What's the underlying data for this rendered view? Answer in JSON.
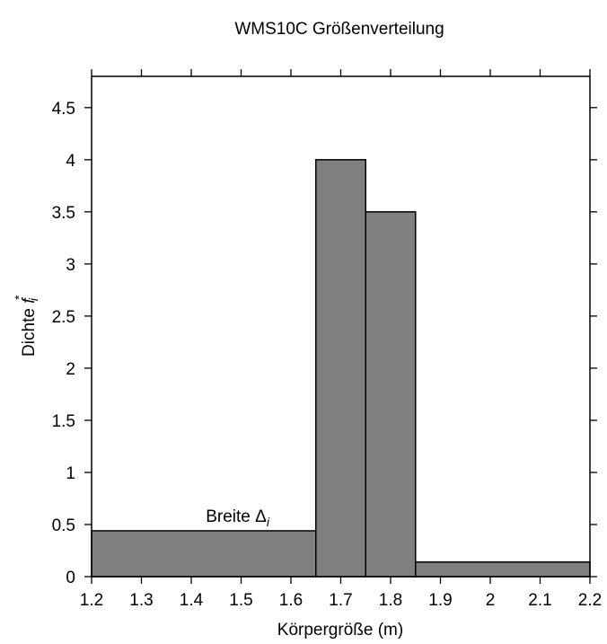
{
  "chart_data": {
    "type": "bar",
    "title": "WMS10C Größenverteilung",
    "xlabel": "Körpergröße (m)",
    "ylabel_text": "Dichte ",
    "ylabel_symbol": "f",
    "ylabel_sub": "i",
    "ylabel_sup": "*",
    "xlim": [
      1.2,
      2.2
    ],
    "ylim": [
      0,
      4.8
    ],
    "xticks": [
      "1.2",
      "1.3",
      "1.4",
      "1.5",
      "1.6",
      "1.7",
      "1.8",
      "1.9",
      "2",
      "2.1",
      "2.2"
    ],
    "yticks": [
      "0",
      "0.5",
      "1",
      "1.5",
      "2",
      "2.5",
      "3",
      "3.5",
      "4",
      "4.5"
    ],
    "bins": [
      {
        "x0": 1.2,
        "x1": 1.65,
        "value": 0.44
      },
      {
        "x0": 1.65,
        "x1": 1.75,
        "value": 4.0
      },
      {
        "x0": 1.75,
        "x1": 1.85,
        "value": 3.5
      },
      {
        "x0": 1.85,
        "x1": 2.2,
        "value": 0.14
      }
    ],
    "annotation": {
      "text": "Breite ",
      "symbol": "Δ",
      "sub": "i",
      "x": 1.44,
      "y": 0.5
    },
    "bar_color": "#808080",
    "grid": false
  }
}
